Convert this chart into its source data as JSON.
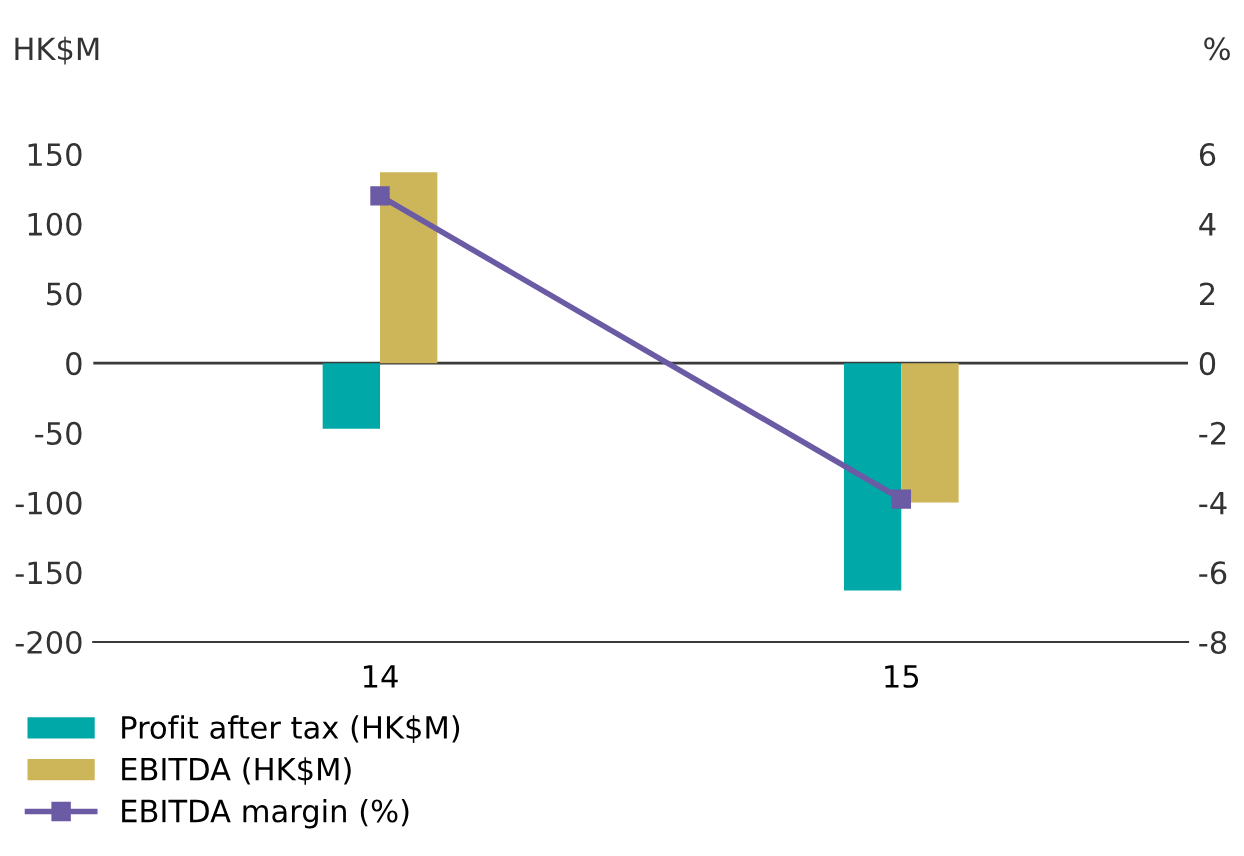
{
  "chart_data": {
    "type": "bar",
    "categories": [
      "14",
      "15"
    ],
    "ylabel": "HK$M",
    "y2label": "%",
    "series": [
      {
        "name": "Profit after tax (HK$M)",
        "color": "#00a8a8",
        "values": [
          -47,
          -163
        ]
      },
      {
        "name": "EBITDA (HK$M)",
        "color": "#cdb65a",
        "values": [
          137,
          -100
        ]
      },
      {
        "name": "EBITDA margin (%)",
        "color": "#6b5ba5",
        "values": [
          4.8,
          -3.9
        ],
        "type": "line",
        "axis": "y2"
      }
    ],
    "ylim": [
      -200,
      150
    ],
    "yticks": [
      -200,
      -150,
      -100,
      -50,
      0,
      50,
      100,
      150
    ],
    "y2lim": [
      -8,
      6
    ],
    "y2ticks": [
      -8,
      -6,
      -4,
      -2,
      0,
      2,
      4,
      6
    ],
    "ref_lines": [
      {
        "axis": "y",
        "value": 0,
        "color": "#3a3a3a"
      }
    ],
    "marker": "square",
    "grid": false,
    "legend": "bottom"
  }
}
